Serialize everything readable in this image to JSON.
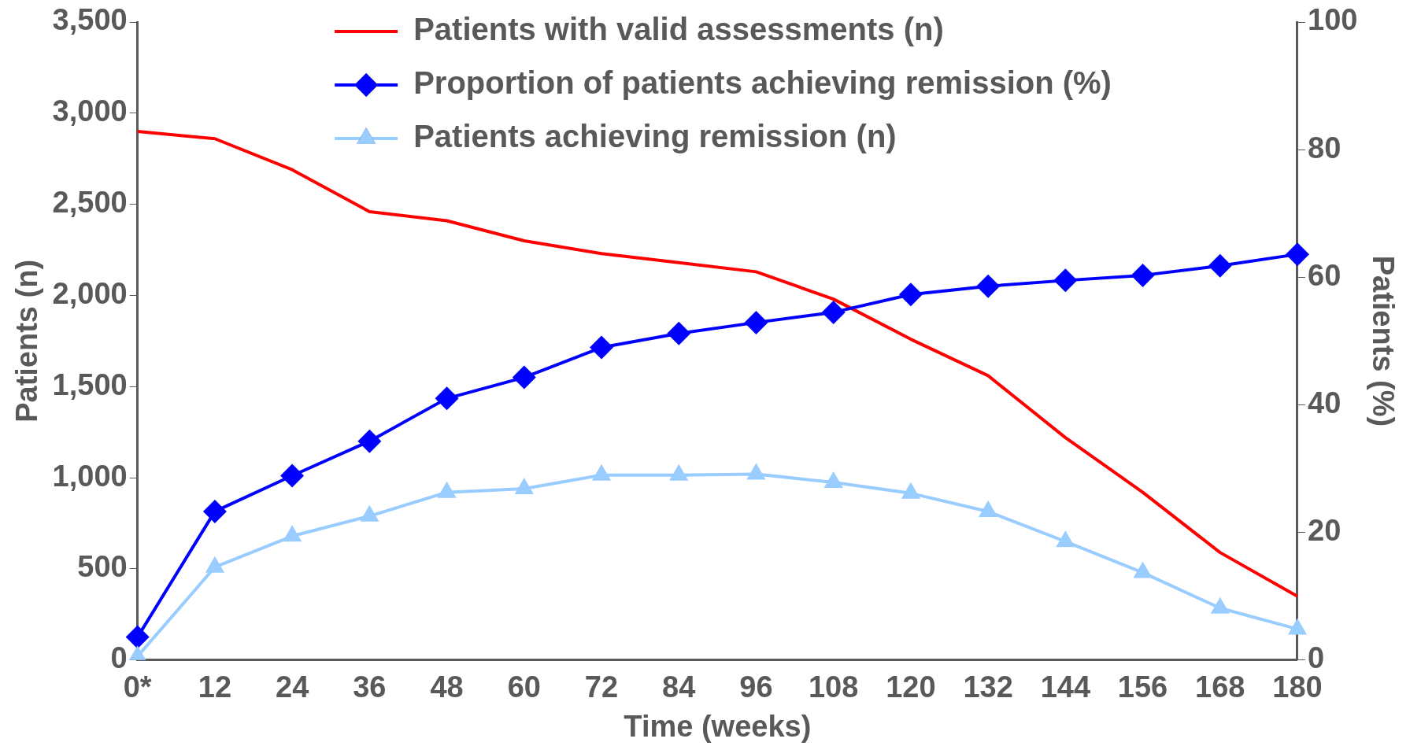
{
  "chart_data": {
    "type": "line",
    "categories": [
      "0*",
      "12",
      "24",
      "36",
      "48",
      "60",
      "72",
      "84",
      "96",
      "108",
      "120",
      "132",
      "144",
      "156",
      "168",
      "180"
    ],
    "series": [
      {
        "name": "Patients with valid assessments (n)",
        "color": "#ff0000",
        "marker": "none",
        "values": [
          2900,
          2860,
          2690,
          2460,
          2410,
          2300,
          2230,
          2180,
          2130,
          1980,
          1760,
          1560,
          1220,
          920,
          590,
          350
        ]
      },
      {
        "name": "Proportion of patients achieving remission (%)",
        "color": "#0000ff",
        "marker": "diamond",
        "axis": "y2",
        "values": [
          3.6,
          23.3,
          28.9,
          34.3,
          41.0,
          44.3,
          49.0,
          51.2,
          52.9,
          54.5,
          57.3,
          58.6,
          59.5,
          60.3,
          61.8,
          63.6
        ]
      },
      {
        "name": "Patients achieving remission (n)",
        "color": "#99ccff",
        "marker": "triangle",
        "values": [
          20,
          510,
          680,
          790,
          920,
          940,
          1015,
          1015,
          1020,
          975,
          915,
          815,
          650,
          480,
          285,
          170
        ]
      }
    ],
    "xlabel": "Time (weeks)",
    "ylabel": "Patients (n)",
    "y2label": "Patients (%)",
    "ylim": [
      0,
      3500
    ],
    "yticks": [
      0,
      500,
      {
        "value": 1000,
        "label": "1,000"
      },
      {
        "value": 1500,
        "label": "1,500"
      },
      {
        "value": 2000,
        "label": "2,000"
      },
      {
        "value": 2500,
        "label": "2,500"
      },
      {
        "value": 3000,
        "label": "3,000"
      },
      {
        "value": 3500,
        "label": "3,500"
      }
    ],
    "y2lim": [
      0,
      100
    ],
    "y2ticks": [
      0,
      20,
      40,
      60,
      80,
      100
    ],
    "grid": false,
    "legend": "top",
    "line_style": "solid"
  }
}
